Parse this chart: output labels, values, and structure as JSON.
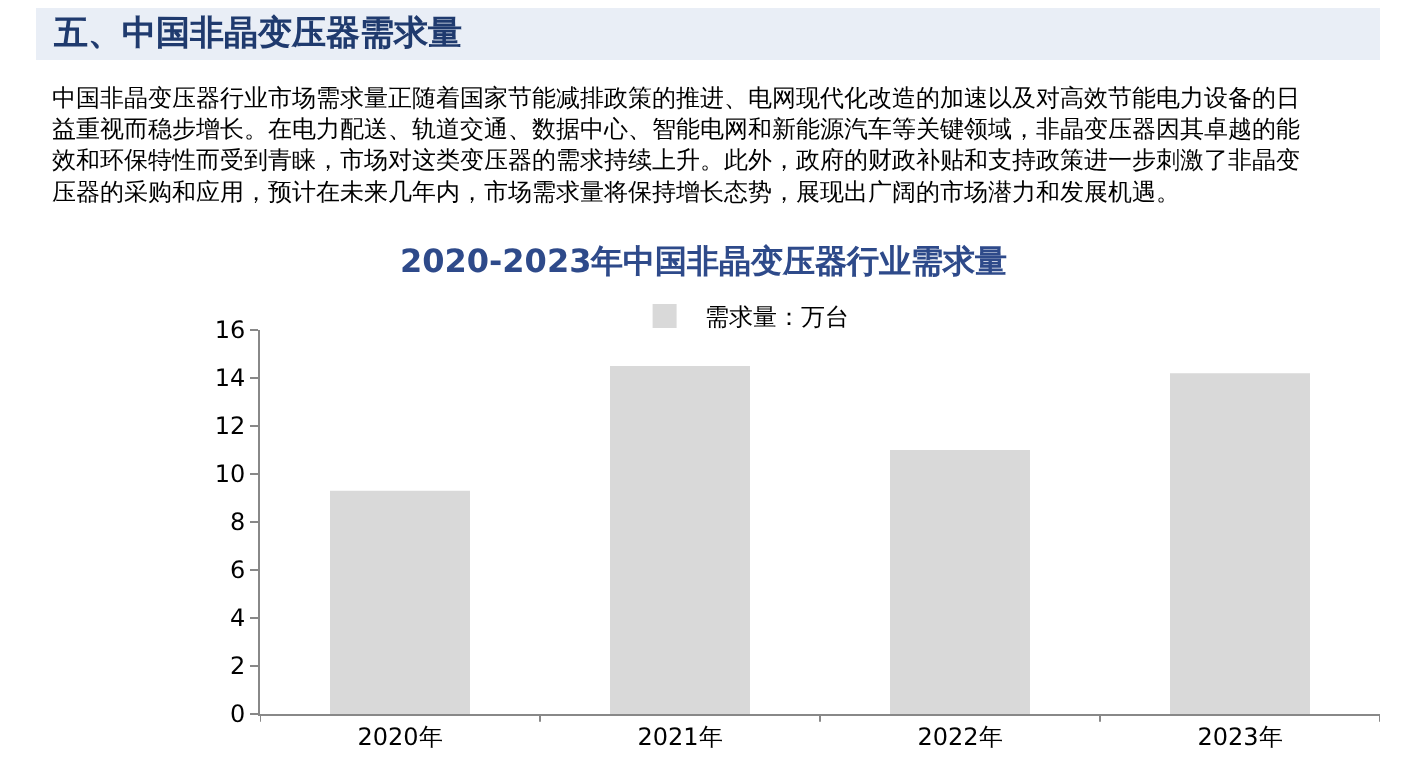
{
  "chart_data": {
    "type": "bar",
    "title": "2020-2023年中国非晶变压器行业需求量",
    "annotations": [
      "五、中国非晶变压器需求量",
      "中国非晶变压器行业市场需求量正随着国家节能减排政策的推进、电网现代化改造的加速以及对高效节能电力设备的日益重视而稳步增长。在电力配送、轨道交通、数据中心、智能电网和新能源汽车等关键领域，非晶变压器因其卓越的能效和环保特性而受到青睐，市场对这类变压器的需求持续上升。此外，政府的财政补贴和支持政策进一步刺激了非晶变压器的采购和应用，预计在未来几年内，市场需求量将保持增长态势，展现出广阔的市场潜力和发展机遇。"
    ],
    "categories": [
      "2020年",
      "2021年",
      "2022年",
      "2023年"
    ],
    "series": [
      {
        "name": "需求量：万台",
        "color": "#d9d9d9",
        "values": [
          9.3,
          14.5,
          11.0,
          14.2
        ]
      }
    ],
    "ylim": [
      0,
      16
    ],
    "yticks": [
      0,
      2,
      4,
      6,
      8,
      10,
      12,
      14,
      16
    ],
    "legend": "top"
  }
}
